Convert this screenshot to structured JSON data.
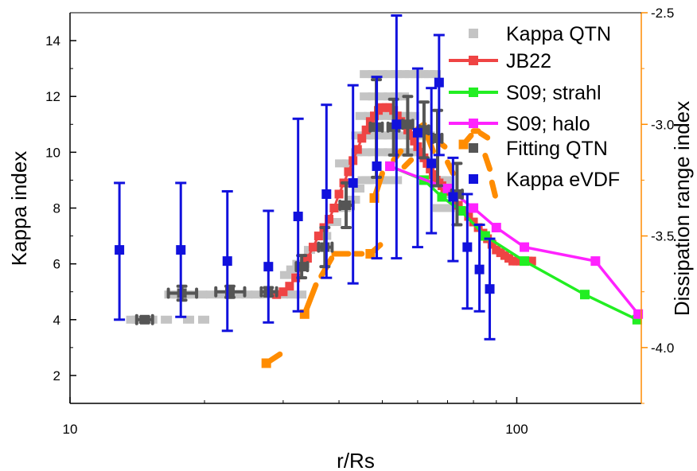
{
  "chart_data": {
    "type": "scatter",
    "xlabel": "r/Rs",
    "ylabel": "Kappa index",
    "y2label": "Dissipation range index",
    "xscale": "log",
    "xlim": [
      10,
      190
    ],
    "ylim": [
      1,
      15
    ],
    "y2lim": [
      -4.25,
      -2.5
    ],
    "xticks": [
      {
        "v": 10,
        "label": "10"
      },
      {
        "v": 100,
        "label": "100"
      }
    ],
    "yticks": [
      {
        "v": 2,
        "label": "2"
      },
      {
        "v": 4,
        "label": "4"
      },
      {
        "v": 6,
        "label": "6"
      },
      {
        "v": 8,
        "label": "8"
      },
      {
        "v": 10,
        "label": "10"
      },
      {
        "v": 12,
        "label": "12"
      },
      {
        "v": 14,
        "label": "14"
      }
    ],
    "y2ticks": [
      {
        "v": -2.5,
        "label": "-2.5"
      },
      {
        "v": -3.0,
        "label": "-3.0"
      },
      {
        "v": -3.5,
        "label": "-3.5"
      },
      {
        "v": -4.0,
        "label": "-4.0"
      }
    ],
    "grid": false,
    "legend_position": "top-right",
    "colors": {
      "kappa_qtn": "#c4c4c4",
      "jb22": "#ef4444",
      "s09_strahl": "#22ee22",
      "s09_halo": "#ff22ff",
      "fitting_qtn": "#555555",
      "kappa_evdf": "#1111dd",
      "dissipation": "#ff8c00",
      "right_axis": "#ff8c00"
    },
    "series": [
      {
        "name": "Kappa QTN",
        "key": "kappa_qtn",
        "style": "gray-dash",
        "points": [
          [
            13.8,
            4
          ],
          [
            14.2,
            4
          ],
          [
            14.7,
            4
          ],
          [
            15.3,
            4
          ],
          [
            16.5,
            4
          ],
          [
            18.5,
            4
          ],
          [
            20,
            4
          ],
          [
            16.8,
            4.9
          ],
          [
            17.5,
            4.9
          ],
          [
            18.3,
            4.9
          ],
          [
            19.0,
            4.9
          ],
          [
            19.8,
            4.9
          ],
          [
            20.8,
            4.9
          ],
          [
            21.8,
            4.9
          ],
          [
            22.8,
            4.9
          ],
          [
            23.9,
            4.9
          ],
          [
            25.0,
            4.9
          ],
          [
            26.2,
            4.9
          ],
          [
            27.4,
            4.9
          ],
          [
            28.7,
            4.9
          ],
          [
            30.0,
            4.9
          ],
          [
            31.5,
            4.9
          ],
          [
            33.0,
            4.9
          ],
          [
            30.5,
            5.6
          ],
          [
            31.5,
            5.8
          ],
          [
            32.5,
            6.0
          ],
          [
            33.5,
            6.0
          ],
          [
            34.5,
            6.5
          ],
          [
            35.5,
            6.6
          ],
          [
            36.5,
            7.0
          ],
          [
            37.5,
            7.0
          ],
          [
            38.5,
            7.5
          ],
          [
            39.5,
            7.5
          ],
          [
            40.5,
            8.0
          ],
          [
            41.5,
            8.0
          ],
          [
            42.5,
            8.3
          ],
          [
            43.5,
            8.3
          ],
          [
            44.5,
            8.7
          ],
          [
            45.5,
            9.0
          ],
          [
            46.5,
            9.0
          ],
          [
            48,
            9.0
          ],
          [
            50,
            9.0
          ],
          [
            52,
            9.0
          ],
          [
            54,
            9.0
          ],
          [
            40.5,
            9.6
          ],
          [
            42,
            9.6
          ],
          [
            44,
            10.0
          ],
          [
            46,
            10.0
          ],
          [
            48,
            10.0
          ],
          [
            50,
            10.0
          ],
          [
            52,
            10.0
          ],
          [
            54,
            10.0
          ],
          [
            56,
            10.0
          ],
          [
            58,
            10.0
          ],
          [
            60,
            10.0
          ],
          [
            44,
            10.6
          ],
          [
            46,
            10.6
          ],
          [
            48,
            10.6
          ],
          [
            50,
            10.6
          ],
          [
            52,
            10.6
          ],
          [
            54,
            10.6
          ],
          [
            56,
            10.6
          ],
          [
            58,
            10.6
          ],
          [
            60,
            10.6
          ],
          [
            62,
            10.6
          ],
          [
            64,
            10.6
          ],
          [
            45,
            11.3
          ],
          [
            47,
            11.3
          ],
          [
            49,
            11.3
          ],
          [
            51,
            11.3
          ],
          [
            53,
            11.3
          ],
          [
            55,
            11.3
          ],
          [
            57,
            11.3
          ],
          [
            59,
            11.3
          ],
          [
            46,
            12.0
          ],
          [
            48,
            12.0
          ],
          [
            50,
            12.0
          ],
          [
            52,
            12.0
          ],
          [
            54,
            12.0
          ],
          [
            56,
            12.0
          ],
          [
            46,
            12.8
          ],
          [
            48,
            12.8
          ],
          [
            50,
            12.8
          ],
          [
            52,
            12.8
          ],
          [
            54,
            12.8
          ],
          [
            56,
            12.8
          ],
          [
            58,
            12.8
          ],
          [
            60,
            12.8
          ],
          [
            62,
            12.8
          ],
          [
            64,
            12.8
          ],
          [
            66,
            12.8
          ],
          [
            64,
            9.0
          ],
          [
            66,
            9.0
          ],
          [
            68,
            9.0
          ],
          [
            70,
            9.0
          ],
          [
            67,
            8.0
          ],
          [
            69,
            8.0
          ],
          [
            71,
            8.0
          ],
          [
            72,
            8.5
          ]
        ]
      },
      {
        "name": "JB22",
        "key": "jb22",
        "style": "line-square",
        "points": [
          [
            29,
            4.9
          ],
          [
            30,
            5.0
          ],
          [
            31,
            5.2
          ],
          [
            32,
            5.5
          ],
          [
            33,
            5.9
          ],
          [
            34,
            6.2
          ],
          [
            35,
            6.6
          ],
          [
            36,
            7.0
          ],
          [
            37,
            7.3
          ],
          [
            38,
            7.6
          ],
          [
            39,
            8.0
          ],
          [
            40,
            8.5
          ],
          [
            41,
            8.9
          ],
          [
            42,
            9.3
          ],
          [
            43,
            9.7
          ],
          [
            44,
            10.1
          ],
          [
            45,
            10.5
          ],
          [
            46,
            10.8
          ],
          [
            47,
            11.1
          ],
          [
            48,
            11.3
          ],
          [
            49,
            11.5
          ],
          [
            50,
            11.6
          ],
          [
            51,
            11.6
          ],
          [
            52,
            11.6
          ],
          [
            53,
            11.5
          ],
          [
            54,
            11.3
          ],
          [
            55,
            11.1
          ],
          [
            56,
            11.0
          ],
          [
            57,
            10.8
          ],
          [
            58,
            10.6
          ],
          [
            59,
            10.4
          ],
          [
            60,
            10.2
          ],
          [
            61,
            10.0
          ],
          [
            62,
            9.8
          ],
          [
            63,
            9.6
          ],
          [
            64,
            9.4
          ],
          [
            65,
            9.2
          ],
          [
            66,
            9.0
          ],
          [
            67,
            8.9
          ],
          [
            68,
            8.8
          ],
          [
            69,
            8.7
          ],
          [
            70,
            8.6
          ],
          [
            72,
            8.4
          ],
          [
            74,
            8.1
          ],
          [
            76,
            7.9
          ],
          [
            78,
            7.7
          ],
          [
            80,
            7.5
          ],
          [
            82,
            7.3
          ],
          [
            84,
            7.1
          ],
          [
            86,
            6.9
          ],
          [
            88,
            6.7
          ],
          [
            90,
            6.5
          ],
          [
            92,
            6.4
          ],
          [
            94,
            6.3
          ],
          [
            96,
            6.2
          ],
          [
            98,
            6.1
          ],
          [
            100,
            6.1
          ],
          [
            102,
            6.1
          ],
          [
            104,
            6.1
          ],
          [
            106,
            6.1
          ],
          [
            108,
            6.1
          ]
        ]
      },
      {
        "name": "S09; strahl",
        "key": "s09_strahl",
        "style": "line-square",
        "points": [
          [
            52,
            9.5
          ],
          [
            62,
            9.0
          ],
          [
            68,
            8.4
          ],
          [
            75,
            7.9
          ],
          [
            85,
            7.0
          ],
          [
            104,
            6.1
          ],
          [
            142,
            4.9
          ],
          [
            186,
            4.0
          ]
        ]
      },
      {
        "name": "S09; halo",
        "key": "s09_halo",
        "style": "line-square",
        "points": [
          [
            52,
            9.5
          ],
          [
            70,
            8.7
          ],
          [
            80,
            8.0
          ],
          [
            90,
            7.3
          ],
          [
            104,
            6.6
          ],
          [
            150,
            6.1
          ],
          [
            187,
            4.2
          ]
        ]
      },
      {
        "name": "Fitting QTN",
        "key": "fitting_qtn",
        "style": "errorbar-xy",
        "points": [
          {
            "x": 14.7,
            "y": 4.0,
            "xlo": 14.1,
            "xhi": 15.3,
            "ylo": 3.9,
            "yhi": 4.1
          },
          {
            "x": 17.8,
            "y": 4.95,
            "xlo": 16.6,
            "xhi": 19.2,
            "ylo": 4.7,
            "yhi": 5.2
          },
          {
            "x": 22.8,
            "y": 5.0,
            "xlo": 21.2,
            "xhi": 24.6,
            "ylo": 4.8,
            "yhi": 5.2
          },
          {
            "x": 27.8,
            "y": 5.0,
            "xlo": 26.8,
            "xhi": 29.0,
            "ylo": 4.85,
            "yhi": 5.15
          },
          {
            "x": 33.0,
            "y": 5.9,
            "xlo": 32.1,
            "xhi": 34.0,
            "ylo": 5.5,
            "yhi": 6.3
          },
          {
            "x": 37.2,
            "y": 6.6,
            "xlo": 36.0,
            "xhi": 38.6,
            "ylo": 5.9,
            "yhi": 7.3
          },
          {
            "x": 41.5,
            "y": 8.1,
            "xlo": 40.2,
            "xhi": 43.0,
            "ylo": 7.3,
            "yhi": 8.9
          },
          {
            "x": 48.5,
            "y": 10.9,
            "xlo": 47.0,
            "xhi": 50.0,
            "ylo": 9.1,
            "yhi": 12.6
          },
          {
            "x": 53.0,
            "y": 10.9,
            "xlo": 51.5,
            "xhi": 54.5,
            "ylo": 9.9,
            "yhi": 11.9
          },
          {
            "x": 57.0,
            "y": 11.0,
            "xlo": 55.5,
            "xhi": 58.5,
            "ylo": 9.9,
            "yhi": 12.0
          },
          {
            "x": 62.0,
            "y": 10.8,
            "xlo": 60.5,
            "xhi": 63.5,
            "ylo": 9.8,
            "yhi": 11.8
          },
          {
            "x": 66.5,
            "y": 10.5,
            "xlo": 65.0,
            "xhi": 68.0,
            "ylo": 8.8,
            "yhi": 11.5
          },
          {
            "x": 73.5,
            "y": 8.5,
            "xlo": 71.5,
            "xhi": 75.5,
            "ylo": 7.4,
            "yhi": 9.6
          }
        ]
      },
      {
        "name": "Kappa eVDF",
        "key": "kappa_evdf",
        "style": "errorbar-y",
        "points": [
          {
            "x": 12.9,
            "y": 6.5,
            "ylo": 4.0,
            "yhi": 8.9
          },
          {
            "x": 17.7,
            "y": 6.5,
            "ylo": 4.1,
            "yhi": 8.9
          },
          {
            "x": 22.5,
            "y": 6.1,
            "ylo": 3.6,
            "yhi": 8.6
          },
          {
            "x": 27.8,
            "y": 5.9,
            "ylo": 3.9,
            "yhi": 7.9
          },
          {
            "x": 32.4,
            "y": 7.7,
            "ylo": 4.3,
            "yhi": 11.2
          },
          {
            "x": 37.5,
            "y": 8.5,
            "ylo": 5.5,
            "yhi": 11.7
          },
          {
            "x": 43.0,
            "y": 8.9,
            "ylo": 5.3,
            "yhi": 12.4
          },
          {
            "x": 48.6,
            "y": 9.5,
            "ylo": 6.2,
            "yhi": 12.7
          },
          {
            "x": 53.8,
            "y": 11.0,
            "ylo": 6.2,
            "yhi": 14.9
          },
          {
            "x": 60.0,
            "y": 10.7,
            "ylo": 6.6,
            "yhi": 13.0
          },
          {
            "x": 64.4,
            "y": 9.6,
            "ylo": 7.1,
            "yhi": 12.3
          },
          {
            "x": 67.0,
            "y": 12.5,
            "ylo": 9.9,
            "yhi": 14.2
          },
          {
            "x": 72.0,
            "y": 8.4,
            "ylo": 6.1,
            "yhi": 9.8
          },
          {
            "x": 77.5,
            "y": 6.6,
            "ylo": 4.4,
            "yhi": 8.5
          },
          {
            "x": 82.5,
            "y": 5.8,
            "ylo": 4.3,
            "yhi": 7.4
          },
          {
            "x": 87.0,
            "y": 5.1,
            "ylo": 3.3,
            "yhi": 6.9
          }
        ]
      },
      {
        "name": "",
        "key": "dissipation",
        "style": "orange-dash",
        "axis": "right",
        "segments": [
          [
            [
              27.5,
              -4.07
            ],
            [
              29.5,
              -4.03
            ]
          ],
          [
            [
              33.5,
              -3.85
            ],
            [
              35.5,
              -3.72
            ]
          ],
          [
            [
              36.5,
              -3.68
            ],
            [
              38.5,
              -3.6
            ]
          ],
          [
            [
              39,
              -3.58
            ],
            [
              42,
              -3.58
            ]
          ],
          [
            [
              43.5,
              -3.58
            ],
            [
              45,
              -3.58
            ]
          ],
          [
            [
              47,
              -3.58
            ],
            [
              49.5,
              -3.54
            ]
          ],
          [
            [
              48,
              -3.33
            ],
            [
              50,
              -3.22
            ]
          ],
          [
            [
              53,
              -3.16
            ],
            [
              55,
              -3.12
            ]
          ],
          [
            [
              56,
              -3.19
            ],
            [
              58,
              -3.16
            ]
          ],
          [
            [
              60,
              -3.02
            ],
            [
              62,
              -3.0
            ]
          ],
          [
            [
              63,
              -3.05
            ],
            [
              65,
              -3.12
            ]
          ],
          [
            [
              66,
              -3.07
            ],
            [
              69,
              -3.1
            ]
          ],
          [
            [
              70,
              -3.17
            ],
            [
              72,
              -3.22
            ]
          ],
          [
            [
              76,
              -3.09
            ],
            [
              79,
              -3.05
            ]
          ],
          [
            [
              80,
              -3.03
            ],
            [
              82,
              -3.03
            ]
          ],
          [
            [
              83,
              -3.04
            ],
            [
              86,
              -3.06
            ]
          ],
          [
            [
              85,
              -3.14
            ],
            [
              87,
              -3.2
            ]
          ],
          [
            [
              88,
              -3.26
            ],
            [
              89.5,
              -3.32
            ]
          ]
        ],
        "markers": [
          [
            27.5,
            -4.07
          ],
          [
            33.5,
            -3.85
          ],
          [
            47,
            -3.58
          ],
          [
            48,
            -3.33
          ],
          [
            76,
            -3.09
          ]
        ]
      }
    ]
  }
}
